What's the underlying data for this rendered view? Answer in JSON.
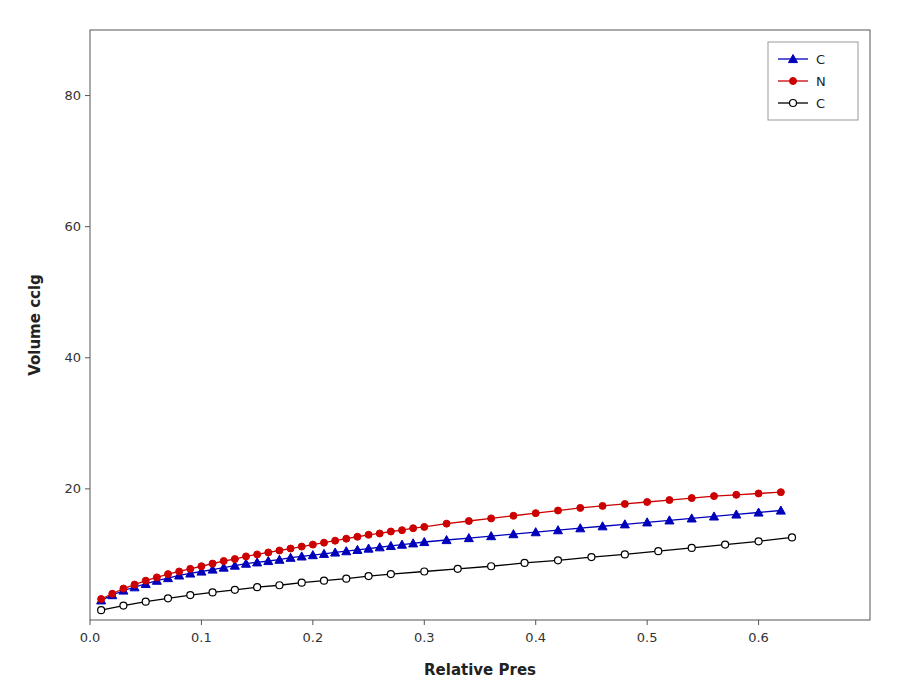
{
  "chart_data": {
    "type": "line",
    "xlabel": "Relative Pres",
    "ylabel": "Volume cclg",
    "xlim": [
      0.0,
      0.7
    ],
    "ylim": [
      0,
      90
    ],
    "xticks": [
      {
        "value": 0.0,
        "label": "0.0"
      },
      0.1,
      0.2,
      0.3,
      0.4,
      0.5,
      0.6
    ],
    "yticks": [
      20,
      40,
      60,
      80
    ],
    "grid": false,
    "legend": "upper right",
    "series": [
      {
        "name": "C",
        "color": "#0000bb",
        "marker": "triangle",
        "x": [
          0.01,
          0.02,
          0.03,
          0.04,
          0.05,
          0.06,
          0.07,
          0.08,
          0.09,
          0.1,
          0.11,
          0.12,
          0.13,
          0.14,
          0.15,
          0.16,
          0.17,
          0.18,
          0.19,
          0.2,
          0.21,
          0.22,
          0.23,
          0.24,
          0.25,
          0.26,
          0.27,
          0.28,
          0.29,
          0.3,
          0.32,
          0.34,
          0.36,
          0.38,
          0.4,
          0.42,
          0.44,
          0.46,
          0.48,
          0.5,
          0.52,
          0.54,
          0.56,
          0.58,
          0.6,
          0.62
        ],
        "values": [
          3.0,
          3.8,
          4.5,
          5.0,
          5.5,
          6.0,
          6.4,
          6.8,
          7.1,
          7.4,
          7.7,
          8.0,
          8.3,
          8.6,
          8.8,
          9.0,
          9.2,
          9.5,
          9.7,
          9.9,
          10.1,
          10.3,
          10.5,
          10.7,
          10.9,
          11.1,
          11.3,
          11.5,
          11.7,
          11.9,
          12.2,
          12.5,
          12.8,
          13.1,
          13.4,
          13.7,
          14.0,
          14.3,
          14.6,
          14.9,
          15.2,
          15.5,
          15.8,
          16.1,
          16.4,
          16.7
        ]
      },
      {
        "name": "N",
        "color": "#cc0000",
        "marker": "circle",
        "x": [
          0.01,
          0.02,
          0.03,
          0.04,
          0.05,
          0.06,
          0.07,
          0.08,
          0.09,
          0.1,
          0.11,
          0.12,
          0.13,
          0.14,
          0.15,
          0.16,
          0.17,
          0.18,
          0.19,
          0.2,
          0.21,
          0.22,
          0.23,
          0.24,
          0.25,
          0.26,
          0.27,
          0.28,
          0.29,
          0.3,
          0.32,
          0.34,
          0.36,
          0.38,
          0.4,
          0.42,
          0.44,
          0.46,
          0.48,
          0.5,
          0.52,
          0.54,
          0.56,
          0.58,
          0.6,
          0.62
        ],
        "values": [
          3.2,
          4.0,
          4.8,
          5.4,
          6.0,
          6.5,
          7.0,
          7.4,
          7.8,
          8.2,
          8.6,
          9.0,
          9.3,
          9.7,
          10.0,
          10.3,
          10.6,
          10.9,
          11.2,
          11.5,
          11.8,
          12.1,
          12.4,
          12.7,
          13.0,
          13.2,
          13.5,
          13.7,
          14.0,
          14.2,
          14.7,
          15.1,
          15.5,
          15.9,
          16.3,
          16.7,
          17.1,
          17.4,
          17.7,
          18.0,
          18.3,
          18.6,
          18.9,
          19.1,
          19.3,
          19.5
        ]
      },
      {
        "name": "C",
        "color": "#000000",
        "marker": "open-circle",
        "x": [
          0.01,
          0.03,
          0.05,
          0.07,
          0.09,
          0.11,
          0.13,
          0.15,
          0.17,
          0.19,
          0.21,
          0.23,
          0.25,
          0.27,
          0.3,
          0.33,
          0.36,
          0.39,
          0.42,
          0.45,
          0.48,
          0.51,
          0.54,
          0.57,
          0.6,
          0.63
        ],
        "values": [
          1.5,
          2.2,
          2.8,
          3.3,
          3.8,
          4.2,
          4.6,
          5.0,
          5.3,
          5.7,
          6.0,
          6.3,
          6.7,
          7.0,
          7.4,
          7.8,
          8.2,
          8.7,
          9.1,
          9.6,
          10.0,
          10.5,
          11.0,
          11.5,
          12.0,
          12.6
        ]
      }
    ]
  }
}
